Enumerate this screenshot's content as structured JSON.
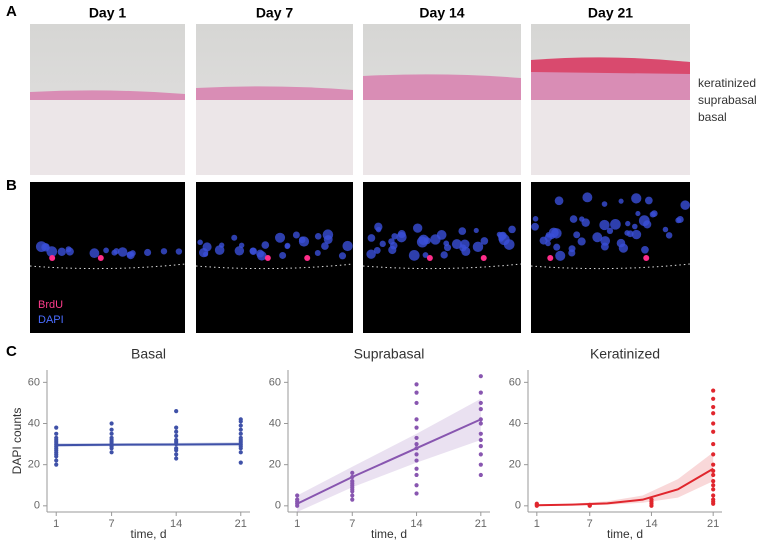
{
  "panels": [
    "A",
    "B",
    "C"
  ],
  "days": [
    "Day 1",
    "Day 7",
    "Day 14",
    "Day 21"
  ],
  "layers": [
    "keratinized",
    "suprabasal",
    "basal"
  ],
  "stains": [
    "BrdU",
    "DAPI"
  ],
  "chart_data": [
    {
      "type": "scatter",
      "title": "Basal",
      "xlabel": "time, d",
      "ylabel": "DAPI counts",
      "color": "#3f51a8",
      "xlim": [
        0,
        22
      ],
      "ylim": [
        -3,
        66
      ],
      "xticks": [
        1,
        7,
        14,
        21
      ],
      "yticks": [
        0,
        20,
        40,
        60
      ],
      "points": {
        "x": [
          1,
          1,
          1,
          1,
          1,
          1,
          1,
          1,
          1,
          1,
          1,
          1,
          1,
          1,
          7,
          7,
          7,
          7,
          7,
          7,
          7,
          7,
          7,
          7,
          14,
          14,
          14,
          14,
          14,
          14,
          14,
          14,
          14,
          14,
          14,
          21,
          21,
          21,
          21,
          21,
          21,
          21,
          21,
          21,
          21,
          21,
          21,
          21
        ],
        "y": [
          20,
          22,
          24,
          25,
          26,
          27,
          28,
          29,
          30,
          31,
          32,
          33,
          35,
          38,
          26,
          28,
          29,
          30,
          31,
          32,
          33,
          35,
          37,
          40,
          23,
          25,
          27,
          28,
          30,
          31,
          32,
          34,
          36,
          38,
          46,
          21,
          26,
          28,
          29,
          30,
          31,
          32,
          33,
          35,
          37,
          39,
          41,
          42
        ]
      },
      "fit": {
        "x": [
          1,
          7,
          14,
          21
        ],
        "values": [
          29.5,
          29.7,
          29.8,
          30
        ],
        "lower": [
          28.5,
          29,
          29,
          29
        ],
        "upper": [
          30.5,
          30.5,
          30.6,
          31
        ]
      }
    },
    {
      "type": "scatter",
      "title": "Suprabasal",
      "xlabel": "time, d",
      "color": "#8856b0",
      "xlim": [
        0,
        22
      ],
      "ylim": [
        -3,
        66
      ],
      "xticks": [
        1,
        7,
        14,
        21
      ],
      "yticks": [
        0,
        20,
        40,
        60
      ],
      "points": {
        "x": [
          1,
          1,
          1,
          1,
          1,
          7,
          7,
          7,
          7,
          7,
          7,
          7,
          7,
          7,
          7,
          14,
          14,
          14,
          14,
          14,
          14,
          14,
          14,
          14,
          14,
          14,
          14,
          14,
          14,
          21,
          21,
          21,
          21,
          21,
          21,
          21,
          21,
          21,
          21,
          21,
          21
        ],
        "y": [
          0,
          1,
          2,
          3,
          5,
          3,
          5,
          7,
          8,
          9,
          10,
          11,
          12,
          14,
          16,
          6,
          10,
          15,
          18,
          22,
          25,
          28,
          30,
          33,
          38,
          42,
          50,
          55,
          59,
          15,
          20,
          25,
          29,
          32,
          35,
          40,
          42,
          47,
          50,
          55,
          63
        ]
      },
      "fit": {
        "x": [
          1,
          7,
          14,
          21
        ],
        "values": [
          1,
          14,
          28,
          42
        ],
        "lower": [
          -3,
          9,
          21,
          32
        ],
        "upper": [
          5,
          19,
          35,
          52
        ]
      }
    },
    {
      "type": "scatter",
      "title": "Keratinized",
      "xlabel": "time, d",
      "color": "#e0262d",
      "xlim": [
        0,
        22
      ],
      "ylim": [
        -3,
        66
      ],
      "xticks": [
        1,
        7,
        14,
        21
      ],
      "yticks": [
        0,
        20,
        40,
        60
      ],
      "points": {
        "x": [
          1,
          1,
          1,
          7,
          7,
          7,
          14,
          14,
          14,
          14,
          21,
          21,
          21,
          21,
          21,
          21,
          21,
          21,
          21,
          21,
          21,
          21,
          21,
          21,
          21,
          21,
          21,
          21
        ],
        "y": [
          0,
          0.5,
          1,
          0,
          0.3,
          0.5,
          0,
          1,
          2,
          3,
          1,
          2,
          3,
          5,
          8,
          10,
          12,
          15,
          17,
          20,
          25,
          30,
          36,
          40,
          45,
          48,
          52,
          56
        ]
      },
      "fit": {
        "x": [
          1,
          5,
          9,
          13,
          17,
          21
        ],
        "values": [
          0.3,
          0.6,
          1.2,
          3,
          8,
          18
        ],
        "lower": [
          0,
          0.2,
          0.5,
          1.5,
          4,
          12
        ],
        "upper": [
          0.6,
          1,
          2.2,
          5,
          13,
          26
        ]
      }
    }
  ]
}
